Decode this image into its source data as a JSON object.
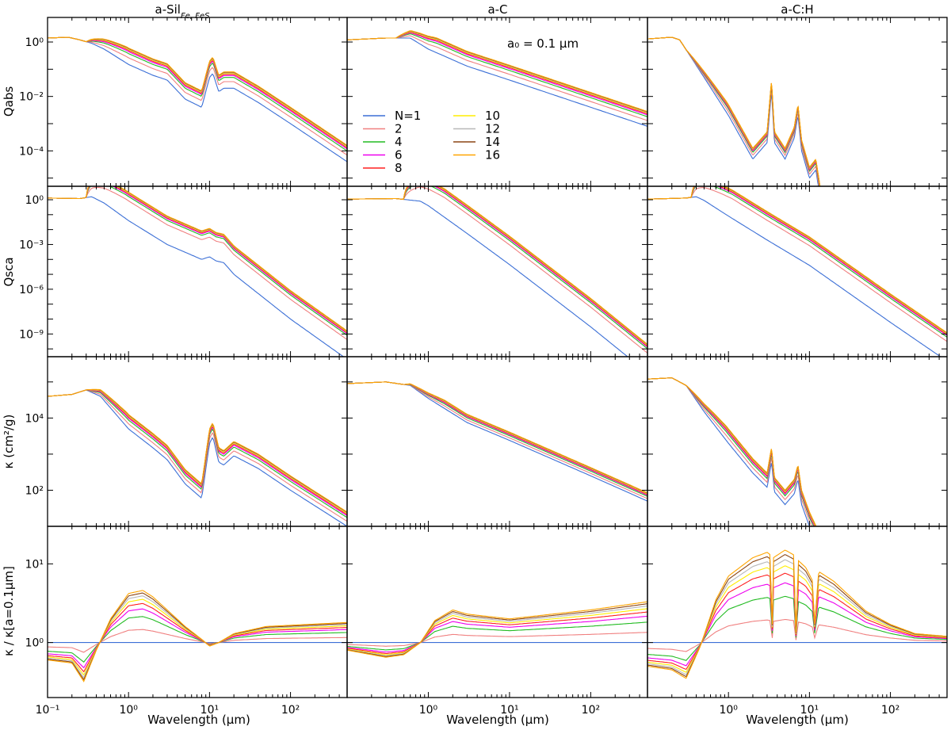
{
  "figure": {
    "column_titles": [
      "a-Sil",
      "a-C",
      "a-C:H"
    ],
    "column_title_subscript": [
      "Fe, FeS",
      "",
      ""
    ],
    "row_ylabels": [
      "Qabs",
      "Qsca",
      "κ (cm²/g)",
      "κ / κ[a=0.1μm]"
    ],
    "xlabel": "Wavelength (μm)",
    "annotation": "a₀ = 0.1 μm",
    "x_tick_labels": [
      "10⁻¹",
      "10⁰",
      "10¹",
      "10²"
    ]
  },
  "chart_data": {
    "type": "line",
    "x_scale": "log",
    "x_range_um": [
      0.1,
      500
    ],
    "x_ticks_um": [
      0.1,
      1,
      10,
      100
    ],
    "legend": [
      "N=1",
      "2",
      "4",
      "6",
      "8",
      "10",
      "12",
      "14",
      "16"
    ],
    "series_colors": [
      "#3b6fd6",
      "#f08080",
      "#22bb22",
      "#ee00ee",
      "#ff2020",
      "#ffee00",
      "#b8b8b8",
      "#8b4513",
      "#ffa500"
    ],
    "rows": [
      {
        "ylabel": "Qabs",
        "y_scale": "log",
        "y_range": [
          5e-06,
          8
        ],
        "y_ticks": [
          {
            "v": 1,
            "label": "10⁰"
          },
          {
            "v": 0.01,
            "label": "10⁻²"
          },
          {
            "v": 0.0001,
            "label": "10⁻⁴"
          }
        ]
      },
      {
        "ylabel": "Qsca",
        "y_scale": "log",
        "y_range": [
          3e-11,
          8
        ],
        "y_ticks": [
          {
            "v": 1,
            "label": "10⁰"
          },
          {
            "v": 0.001,
            "label": "10⁻³"
          },
          {
            "v": 1e-06,
            "label": "10⁻⁶"
          },
          {
            "v": 1e-09,
            "label": "10⁻⁹"
          }
        ]
      },
      {
        "ylabel": "κ (cm²/g)",
        "y_scale": "log",
        "y_range": [
          10,
          500000
        ],
        "y_ticks": [
          {
            "v": 10000,
            "label": "10⁴"
          },
          {
            "v": 100,
            "label": "10²"
          }
        ]
      },
      {
        "ylabel": "κ / κ[a=0.1μm]",
        "y_scale": "log",
        "y_range": [
          0.2,
          30
        ],
        "y_ticks": [
          {
            "v": 10,
            "label": "10¹"
          },
          {
            "v": 1,
            "label": "10⁰"
          }
        ]
      }
    ],
    "panels": [
      {
        "row": 0,
        "col": 0,
        "base": [
          [
            0.1,
            1.4
          ],
          [
            0.18,
            1.5
          ],
          [
            0.25,
            1.2
          ],
          [
            0.35,
            0.9
          ],
          [
            0.5,
            0.55
          ],
          [
            1,
            0.15
          ],
          [
            2,
            0.06
          ],
          [
            3,
            0.04
          ],
          [
            5,
            0.008
          ],
          [
            8,
            0.004
          ],
          [
            10,
            0.05
          ],
          [
            11,
            0.07
          ],
          [
            13,
            0.015
          ],
          [
            15,
            0.02
          ],
          [
            20,
            0.02
          ],
          [
            40,
            0.006
          ],
          [
            100,
            0.001
          ],
          [
            500,
            4e-05
          ]
        ],
        "growth_scale": 3,
        "growth_start": 0.3
      },
      {
        "row": 0,
        "col": 1,
        "base": [
          [
            0.1,
            1.2
          ],
          [
            0.3,
            1.4
          ],
          [
            0.6,
            1.4
          ],
          [
            1,
            0.55
          ],
          [
            3,
            0.13
          ],
          [
            10,
            0.04
          ],
          [
            100,
            0.004
          ],
          [
            500,
            0.0008
          ]
        ],
        "growth_scale": 2.5,
        "growth_start": 0.4
      },
      {
        "row": 0,
        "col": 2,
        "base": [
          [
            0.1,
            1.3
          ],
          [
            0.2,
            1.5
          ],
          [
            0.25,
            1.2
          ],
          [
            0.5,
            0.05
          ],
          [
            1,
            0.002
          ],
          [
            2,
            5e-05
          ],
          [
            3,
            0.0002
          ],
          [
            3.4,
            0.015
          ],
          [
            3.7,
            0.0002
          ],
          [
            5,
            5e-05
          ],
          [
            6.5,
            0.0003
          ],
          [
            7.2,
            0.002
          ],
          [
            8,
            0.0001
          ],
          [
            10,
            1e-05
          ],
          [
            12,
            2e-05
          ],
          [
            14,
            1e-06
          ]
        ],
        "growth_scale": 1.5,
        "growth_start": 0.3
      },
      {
        "row": 1,
        "col": 0,
        "base": [
          [
            0.1,
            1.3
          ],
          [
            0.25,
            1.2
          ],
          [
            0.35,
            1.6
          ],
          [
            0.5,
            0.6
          ],
          [
            1,
            0.04
          ],
          [
            3,
            0.001
          ],
          [
            8,
            0.0001
          ],
          [
            10,
            0.00015
          ],
          [
            12,
            8e-05
          ],
          [
            15,
            6e-05
          ],
          [
            20,
            1e-05
          ],
          [
            100,
            1e-08
          ],
          [
            500,
            2e-11
          ]
        ],
        "growth_scale": 80,
        "growth_start": 0.3
      },
      {
        "row": 1,
        "col": 1,
        "base": [
          [
            0.1,
            1.1
          ],
          [
            0.4,
            1.2
          ],
          [
            0.8,
            0.8
          ],
          [
            1,
            0.4
          ],
          [
            3,
            0.0055
          ],
          [
            10,
            4.5e-05
          ],
          [
            100,
            3e-09
          ],
          [
            500,
            2.5e-12
          ]
        ],
        "growth_scale": 80,
        "growth_start": 0.5
      },
      {
        "row": 1,
        "col": 2,
        "base": [
          [
            0.1,
            1.1
          ],
          [
            0.3,
            1.3
          ],
          [
            0.4,
            1.6
          ],
          [
            0.5,
            0.9
          ],
          [
            1,
            0.08
          ],
          [
            3,
            0.002
          ],
          [
            10,
            4e-05
          ],
          [
            100,
            6e-09
          ],
          [
            500,
            1.5e-11
          ]
        ],
        "growth_scale": 80,
        "growth_start": 0.35
      },
      {
        "row": 2,
        "col": 0,
        "base": [
          [
            0.1,
            40000
          ],
          [
            0.2,
            45000
          ],
          [
            0.3,
            60000
          ],
          [
            0.45,
            40000
          ],
          [
            1,
            5000
          ],
          [
            2,
            1500
          ],
          [
            3,
            700
          ],
          [
            5,
            150
          ],
          [
            8,
            60
          ],
          [
            10,
            2000
          ],
          [
            11,
            3000
          ],
          [
            13,
            600
          ],
          [
            15,
            500
          ],
          [
            20,
            900
          ],
          [
            40,
            400
          ],
          [
            100,
            100
          ],
          [
            500,
            10
          ]
        ],
        "growth_scale": 1.5,
        "growth_start": 0.3
      },
      {
        "row": 2,
        "col": 1,
        "base": [
          [
            0.1,
            90000
          ],
          [
            0.3,
            100000
          ],
          [
            0.6,
            80000
          ],
          [
            1,
            35000
          ],
          [
            3,
            7500
          ],
          [
            10,
            2400
          ],
          [
            100,
            250
          ],
          [
            500,
            50
          ]
        ],
        "growth_scale": 0.7,
        "growth_start": 0.5
      },
      {
        "row": 2,
        "col": 2,
        "base": [
          [
            0.1,
            120000
          ],
          [
            0.2,
            130000
          ],
          [
            0.3,
            80000
          ],
          [
            0.5,
            15000
          ],
          [
            1,
            2000
          ],
          [
            2,
            300
          ],
          [
            3,
            120
          ],
          [
            3.4,
            600
          ],
          [
            3.7,
            90
          ],
          [
            5,
            40
          ],
          [
            6.5,
            80
          ],
          [
            7.2,
            200
          ],
          [
            8,
            40
          ],
          [
            10,
            10
          ],
          [
            14,
            2
          ]
        ],
        "growth_scale": 1.5,
        "growth_start": 0.3
      },
      {
        "row": 3,
        "col": 0,
        "base": [
          [
            0.1,
            1
          ],
          [
            500,
            1
          ]
        ],
        "ratio16": [
          [
            0.1,
            0.6
          ],
          [
            0.2,
            0.55
          ],
          [
            0.28,
            0.32
          ],
          [
            0.4,
            0.8
          ],
          [
            0.6,
            2.0
          ],
          [
            1,
            4.2
          ],
          [
            1.5,
            4.6
          ],
          [
            2,
            3.8
          ],
          [
            3,
            2.6
          ],
          [
            5,
            1.6
          ],
          [
            8,
            1.1
          ],
          [
            10,
            0.9
          ],
          [
            13,
            1.0
          ],
          [
            20,
            1.3
          ],
          [
            50,
            1.6
          ],
          [
            500,
            1.8
          ]
        ]
      },
      {
        "row": 3,
        "col": 1,
        "base": [
          [
            0.1,
            1
          ],
          [
            500,
            1
          ]
        ],
        "ratio16": [
          [
            0.1,
            0.8
          ],
          [
            0.3,
            0.65
          ],
          [
            0.5,
            0.7
          ],
          [
            0.8,
            1.0
          ],
          [
            1.2,
            1.9
          ],
          [
            2,
            2.6
          ],
          [
            3,
            2.3
          ],
          [
            10,
            2.0
          ],
          [
            100,
            2.6
          ],
          [
            500,
            3.3
          ]
        ]
      },
      {
        "row": 3,
        "col": 2,
        "base": [
          [
            0.1,
            1
          ],
          [
            500,
            1
          ]
        ],
        "ratio16": [
          [
            0.1,
            0.5
          ],
          [
            0.2,
            0.45
          ],
          [
            0.3,
            0.35
          ],
          [
            0.45,
            0.9
          ],
          [
            0.7,
            3.5
          ],
          [
            1,
            7
          ],
          [
            2,
            12
          ],
          [
            3,
            14
          ],
          [
            3.3,
            13
          ],
          [
            3.45,
            1.1
          ],
          [
            3.6,
            12
          ],
          [
            5,
            15
          ],
          [
            6.4,
            13
          ],
          [
            6.8,
            1.2
          ],
          [
            7.3,
            11
          ],
          [
            9,
            9
          ],
          [
            11,
            6
          ],
          [
            11.5,
            1.5
          ],
          [
            13,
            8
          ],
          [
            20,
            6
          ],
          [
            50,
            2.5
          ],
          [
            100,
            1.7
          ],
          [
            200,
            1.3
          ],
          [
            500,
            1.2
          ]
        ]
      }
    ]
  }
}
